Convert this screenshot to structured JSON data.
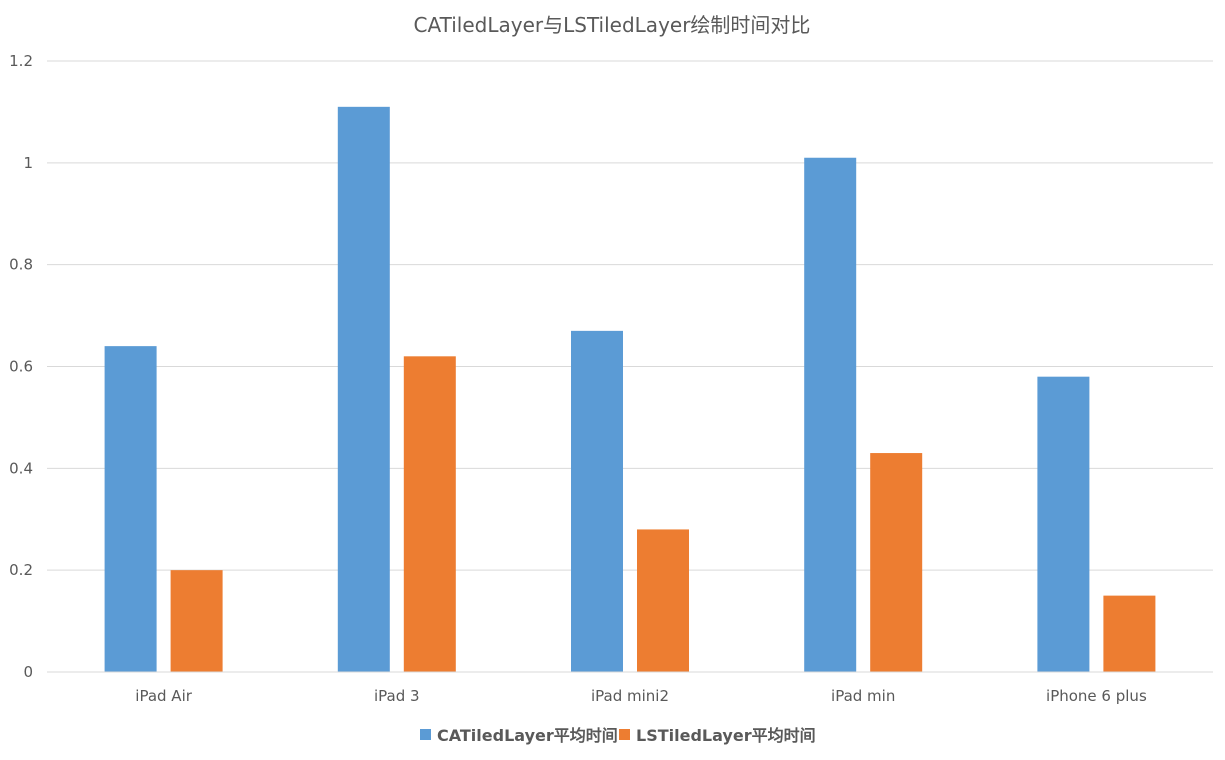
{
  "chart_data": {
    "type": "bar",
    "title": "CATiledLayer与LSTiledLayer绘制时间对比",
    "categories": [
      "iPad Air",
      "iPad 3",
      "iPad mini2",
      "iPad min",
      "iPhone 6 plus"
    ],
    "series": [
      {
        "name": "CATiledLayer平均时间",
        "color": "#5b9bd5",
        "values": [
          0.64,
          1.11,
          0.67,
          1.01,
          0.58
        ]
      },
      {
        "name": "LSTiledLayer平均时间",
        "color": "#ed7d31",
        "values": [
          0.2,
          0.62,
          0.28,
          0.43,
          0.15
        ]
      }
    ],
    "y_ticks": [
      "0",
      "0.2",
      "0.4",
      "0.6",
      "0.8",
      "1",
      "1.2"
    ],
    "ylim": [
      0,
      1.2
    ],
    "xlabel": "",
    "ylabel": "",
    "grid": true,
    "legend_position": "bottom-center"
  }
}
